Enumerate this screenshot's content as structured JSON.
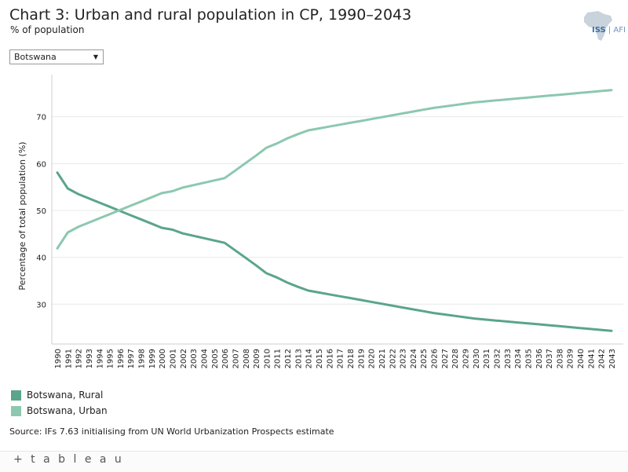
{
  "header": {
    "title": "Chart 3: Urban and rural population in CP, 1990–2043",
    "subtitle": "% of population"
  },
  "logo": {
    "text_bold": "ISS",
    "text_thin": "AFI"
  },
  "filter": {
    "selected": "Botswana"
  },
  "legend": {
    "items": [
      {
        "label": "Botswana, Rural",
        "color": "#5aa58c"
      },
      {
        "label": "Botswana, Urban",
        "color": "#8cc8b0"
      }
    ]
  },
  "source": "Source: IFs 7.63 initialising from UN World Urbanization Prospects estimate",
  "footer": {
    "brand": "+ t a b l e a u"
  },
  "chart_data": {
    "type": "line",
    "ylabel": "Percentage of total population (%)",
    "yticks": [
      30,
      40,
      50,
      60,
      70
    ],
    "ylim": [
      21.5,
      79
    ],
    "x": [
      "1990",
      "1991",
      "1992",
      "1993",
      "1994",
      "1995",
      "1996",
      "1997",
      "1998",
      "1999",
      "2000",
      "2001",
      "2002",
      "2003",
      "2004",
      "2005",
      "2006",
      "2007",
      "2008",
      "2009",
      "2010",
      "2011",
      "2012",
      "2013",
      "2014",
      "2015",
      "2016",
      "2017",
      "2018",
      "2019",
      "2020",
      "2021",
      "2022",
      "2023",
      "2024",
      "2025",
      "2026",
      "2027",
      "2028",
      "2029",
      "2030",
      "2031",
      "2032",
      "2033",
      "2034",
      "2035",
      "2036",
      "2037",
      "2038",
      "2039",
      "2040",
      "2041",
      "2042",
      "2043"
    ],
    "series": [
      {
        "name": "Botswana, Rural",
        "color": "#5aa58c",
        "values": [
          58.1,
          54.7,
          53.5,
          52.6,
          51.7,
          50.8,
          49.9,
          49.0,
          48.1,
          47.2,
          46.3,
          45.9,
          45.1,
          44.6,
          44.1,
          43.6,
          43.1,
          41.5,
          39.9,
          38.3,
          36.6,
          35.7,
          34.6,
          33.7,
          32.9,
          32.5,
          32.1,
          31.7,
          31.3,
          30.9,
          30.5,
          30.1,
          29.7,
          29.3,
          28.9,
          28.5,
          28.1,
          27.8,
          27.5,
          27.2,
          26.9,
          26.7,
          26.5,
          26.3,
          26.1,
          25.9,
          25.7,
          25.5,
          25.3,
          25.1,
          24.9,
          24.7,
          24.5,
          24.3
        ]
      },
      {
        "name": "Botswana, Urban",
        "color": "#8cc8b0",
        "values": [
          41.9,
          45.3,
          46.5,
          47.4,
          48.3,
          49.2,
          50.1,
          51.0,
          51.9,
          52.8,
          53.7,
          54.1,
          54.9,
          55.4,
          55.9,
          56.4,
          56.9,
          58.5,
          60.1,
          61.7,
          63.4,
          64.3,
          65.4,
          66.3,
          67.1,
          67.5,
          67.9,
          68.3,
          68.7,
          69.1,
          69.5,
          69.9,
          70.3,
          70.7,
          71.1,
          71.5,
          71.9,
          72.2,
          72.5,
          72.8,
          73.1,
          73.3,
          73.5,
          73.7,
          73.9,
          74.1,
          74.3,
          74.5,
          74.7,
          74.9,
          75.1,
          75.3,
          75.5,
          75.7
        ]
      }
    ]
  }
}
